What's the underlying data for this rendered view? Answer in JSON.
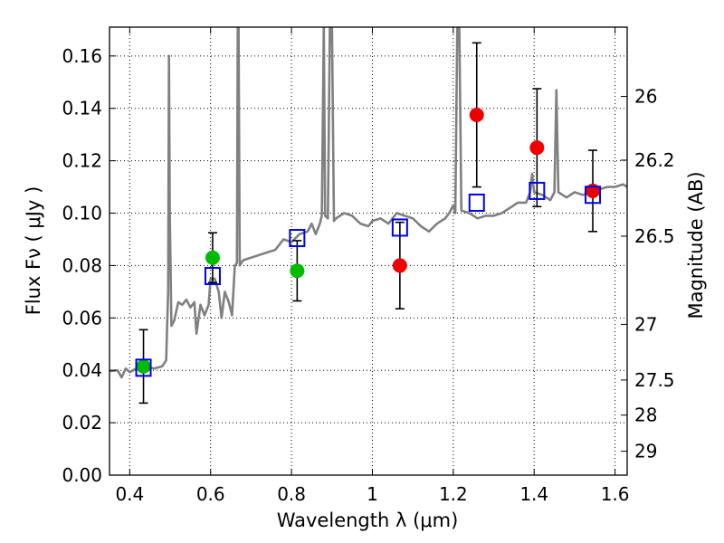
{
  "chart_data": {
    "type": "scatter",
    "xlabel": "Wavelength  λ (μm)",
    "ylabel": "Flux  Fν  ( μJy )",
    "ylabel2": "Magnitude (AB)",
    "xlim": [
      0.35,
      1.63
    ],
    "ylim": [
      0.0,
      0.171
    ],
    "grid": "dotted",
    "x_ticks": [
      {
        "value": 0.4,
        "label": "0.4"
      },
      {
        "value": 0.6,
        "label": "0.6"
      },
      {
        "value": 0.8,
        "label": "0.8"
      },
      {
        "value": 1.0,
        "label": "1"
      },
      {
        "value": 1.2,
        "label": "1.2"
      },
      {
        "value": 1.4,
        "label": "1.4"
      },
      {
        "value": 1.6,
        "label": "1.6"
      }
    ],
    "y_ticks": [
      {
        "value": 0.0,
        "label": "0.00"
      },
      {
        "value": 0.02,
        "label": "0.02"
      },
      {
        "value": 0.04,
        "label": "0.04"
      },
      {
        "value": 0.06,
        "label": "0.06"
      },
      {
        "value": 0.08,
        "label": "0.08"
      },
      {
        "value": 0.1,
        "label": "0.10"
      },
      {
        "value": 0.12,
        "label": "0.12"
      },
      {
        "value": 0.14,
        "label": "0.14"
      },
      {
        "value": 0.16,
        "label": "0.16"
      }
    ],
    "mag_ticks": [
      {
        "value": 26.0,
        "label": "26"
      },
      {
        "value": 26.2,
        "label": "26.2"
      },
      {
        "value": 26.5,
        "label": "26.5"
      },
      {
        "value": 27.0,
        "label": "27"
      },
      {
        "value": 27.5,
        "label": "27.5"
      },
      {
        "value": 28.0,
        "label": "28"
      },
      {
        "value": 29.0,
        "label": "29"
      }
    ],
    "colors": {
      "spectrum": "#808080",
      "green": "#00bb00",
      "red": "#ee0000",
      "model": "#0000ee",
      "error": "#000000",
      "grid": "#000000"
    },
    "series": [
      {
        "name": "model spectrum",
        "kind": "line",
        "points": [
          [
            0.35,
            0.0397
          ],
          [
            0.37,
            0.04
          ],
          [
            0.38,
            0.0373
          ],
          [
            0.39,
            0.0407
          ],
          [
            0.4,
            0.0393
          ],
          [
            0.42,
            0.041
          ],
          [
            0.44,
            0.0415
          ],
          [
            0.46,
            0.0407
          ],
          [
            0.48,
            0.0415
          ],
          [
            0.49,
            0.0438
          ],
          [
            0.495,
            0.07
          ],
          [
            0.497,
            0.16
          ],
          [
            0.499,
            0.1
          ],
          [
            0.503,
            0.057
          ],
          [
            0.51,
            0.059
          ],
          [
            0.52,
            0.066
          ],
          [
            0.53,
            0.065
          ],
          [
            0.54,
            0.067
          ],
          [
            0.55,
            0.064
          ],
          [
            0.56,
            0.066
          ],
          [
            0.565,
            0.054
          ],
          [
            0.575,
            0.065
          ],
          [
            0.585,
            0.061
          ],
          [
            0.595,
            0.065
          ],
          [
            0.6,
            0.075
          ],
          [
            0.61,
            0.075
          ],
          [
            0.62,
            0.07
          ],
          [
            0.627,
            0.06
          ],
          [
            0.635,
            0.07
          ],
          [
            0.645,
            0.066
          ],
          [
            0.653,
            0.061
          ],
          [
            0.66,
            0.08
          ],
          [
            0.665,
            0.081
          ],
          [
            0.667,
            0.172
          ],
          [
            0.669,
            0.172
          ],
          [
            0.672,
            0.08
          ],
          [
            0.68,
            0.082
          ],
          [
            0.7,
            0.083
          ],
          [
            0.72,
            0.084
          ],
          [
            0.74,
            0.085
          ],
          [
            0.76,
            0.086
          ],
          [
            0.78,
            0.09
          ],
          [
            0.8,
            0.089
          ],
          [
            0.82,
            0.092
          ],
          [
            0.84,
            0.093
          ],
          [
            0.85,
            0.096
          ],
          [
            0.86,
            0.092
          ],
          [
            0.87,
            0.096
          ],
          [
            0.875,
            0.099
          ],
          [
            0.88,
            0.172
          ],
          [
            0.883,
            0.099
          ],
          [
            0.89,
            0.098
          ],
          [
            0.895,
            0.172
          ],
          [
            0.9,
            0.172
          ],
          [
            0.905,
            0.097
          ],
          [
            0.91,
            0.098
          ],
          [
            0.93,
            0.1
          ],
          [
            0.95,
            0.099
          ],
          [
            0.97,
            0.096
          ],
          [
            0.99,
            0.095
          ],
          [
            1.0,
            0.097
          ],
          [
            1.02,
            0.098
          ],
          [
            1.04,
            0.096
          ],
          [
            1.06,
            0.1
          ],
          [
            1.08,
            0.099
          ],
          [
            1.1,
            0.098
          ],
          [
            1.12,
            0.095
          ],
          [
            1.14,
            0.093
          ],
          [
            1.16,
            0.096
          ],
          [
            1.17,
            0.097
          ],
          [
            1.18,
            0.098
          ],
          [
            1.19,
            0.1
          ],
          [
            1.2,
            0.103
          ],
          [
            1.205,
            0.1
          ],
          [
            1.21,
            0.172
          ],
          [
            1.215,
            0.172
          ],
          [
            1.22,
            0.101
          ],
          [
            1.24,
            0.1
          ],
          [
            1.26,
            0.098
          ],
          [
            1.28,
            0.099
          ],
          [
            1.3,
            0.099
          ],
          [
            1.32,
            0.1
          ],
          [
            1.34,
            0.102
          ],
          [
            1.36,
            0.104
          ],
          [
            1.38,
            0.104
          ],
          [
            1.39,
            0.108
          ],
          [
            1.395,
            0.115
          ],
          [
            1.4,
            0.108
          ],
          [
            1.42,
            0.107
          ],
          [
            1.44,
            0.105
          ],
          [
            1.45,
            0.108
          ],
          [
            1.455,
            0.147
          ],
          [
            1.46,
            0.108
          ],
          [
            1.48,
            0.106
          ],
          [
            1.5,
            0.108
          ],
          [
            1.52,
            0.107
          ],
          [
            1.54,
            0.108
          ],
          [
            1.56,
            0.109
          ],
          [
            1.58,
            0.11
          ],
          [
            1.6,
            0.11
          ],
          [
            1.62,
            0.111
          ],
          [
            1.63,
            0.11
          ]
        ]
      },
      {
        "name": "green photometry",
        "kind": "points",
        "color_key": "green",
        "points": [
          {
            "x": 0.434,
            "y": 0.0415,
            "err_low": 0.0275,
            "err_high": 0.0555
          },
          {
            "x": 0.605,
            "y": 0.083,
            "err_low": 0.0735,
            "err_high": 0.0925
          },
          {
            "x": 0.814,
            "y": 0.078,
            "err_low": 0.0665,
            "err_high": 0.0895
          }
        ]
      },
      {
        "name": "red photometry",
        "kind": "points",
        "color_key": "red",
        "points": [
          {
            "x": 1.068,
            "y": 0.08,
            "err_low": 0.0635,
            "err_high": 0.0965
          },
          {
            "x": 1.258,
            "y": 0.1375,
            "err_low": 0.11,
            "err_high": 0.165
          },
          {
            "x": 1.407,
            "y": 0.125,
            "err_low": 0.1025,
            "err_high": 0.1475
          },
          {
            "x": 1.545,
            "y": 0.1085,
            "err_low": 0.093,
            "err_high": 0.124
          }
        ]
      },
      {
        "name": "model synthetic photometry",
        "kind": "squares",
        "color_key": "model",
        "points": [
          {
            "x": 0.434,
            "y": 0.041
          },
          {
            "x": 0.605,
            "y": 0.076
          },
          {
            "x": 0.814,
            "y": 0.0905
          },
          {
            "x": 1.068,
            "y": 0.0945
          },
          {
            "x": 1.258,
            "y": 0.104
          },
          {
            "x": 1.407,
            "y": 0.1085
          },
          {
            "x": 1.545,
            "y": 0.107
          }
        ]
      }
    ]
  }
}
